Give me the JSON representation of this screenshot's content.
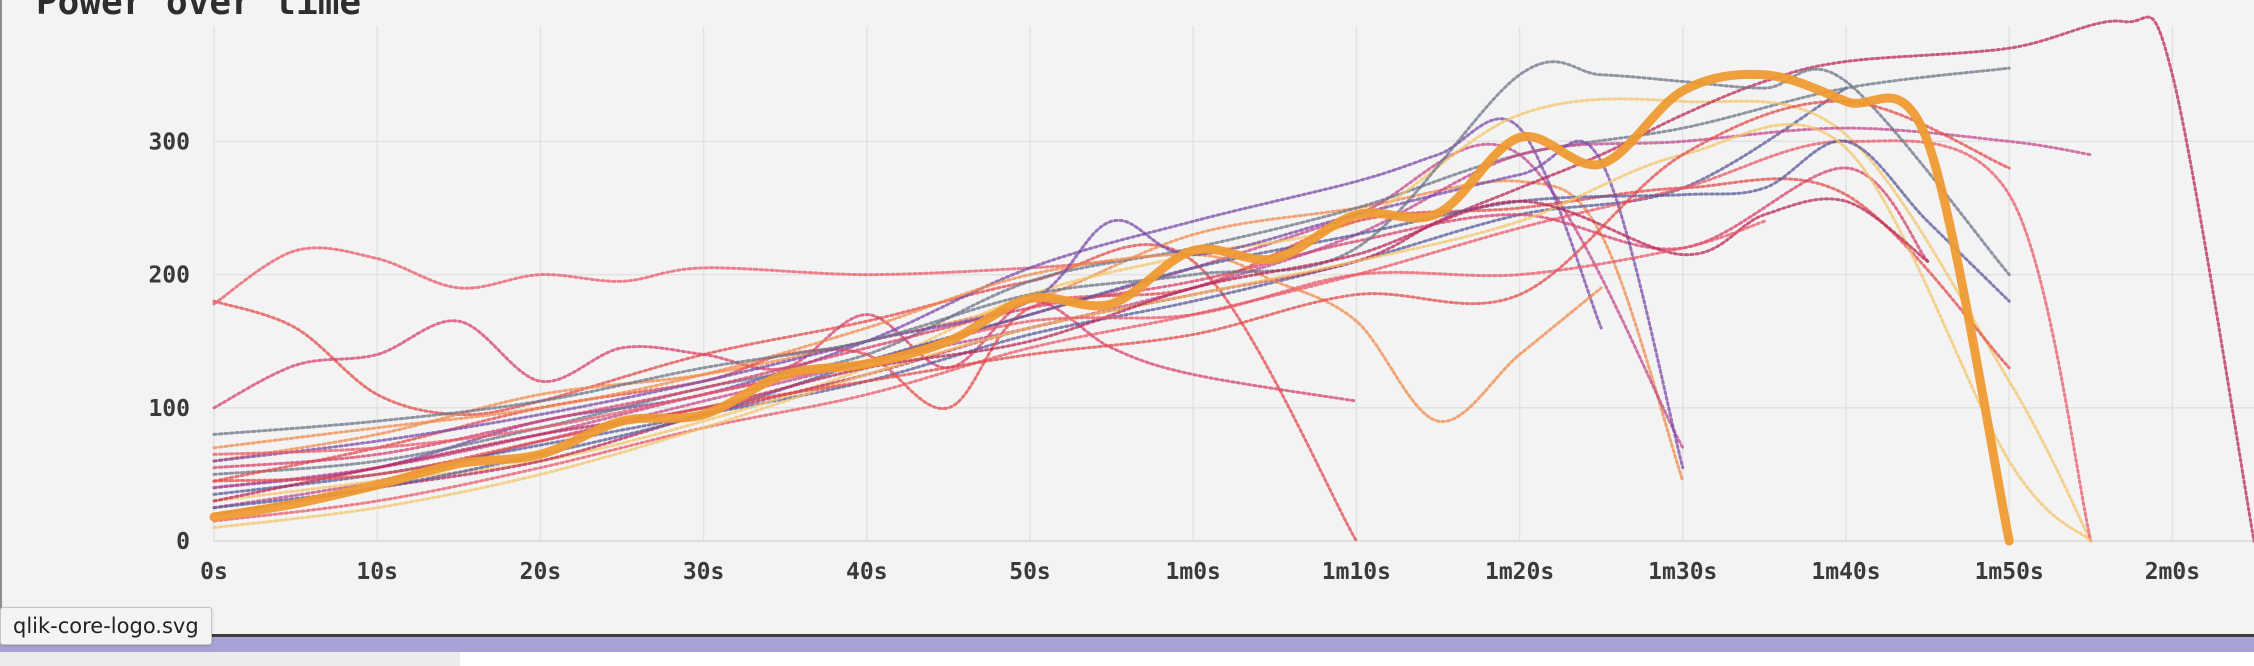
{
  "tooltip": {
    "text": "qlik-core-logo.svg"
  },
  "colors": {
    "background": "#f3f3f3",
    "grid": "#e2e2e2",
    "highlight": "#ee9a32",
    "trace_palette": [
      "#e24b4b",
      "#e85a6a",
      "#d7426b",
      "#f08a4b",
      "#c14a8c",
      "#7a4aa8",
      "#5a5a9a",
      "#6e7488",
      "#f3c56a",
      "#b82a5a"
    ]
  },
  "chart_data": {
    "type": "line",
    "title": "Power over time",
    "xlabel": "",
    "ylabel": "",
    "xlim": [
      0,
      125
    ],
    "ylim": [
      0,
      380
    ],
    "grid": true,
    "x_ticks": [
      {
        "v": 0,
        "label": "0s"
      },
      {
        "v": 10,
        "label": "10s"
      },
      {
        "v": 20,
        "label": "20s"
      },
      {
        "v": 30,
        "label": "30s"
      },
      {
        "v": 40,
        "label": "40s"
      },
      {
        "v": 50,
        "label": "50s"
      },
      {
        "v": 60,
        "label": "1m0s"
      },
      {
        "v": 70,
        "label": "1m10s"
      },
      {
        "v": 80,
        "label": "1m20s"
      },
      {
        "v": 90,
        "label": "1m30s"
      },
      {
        "v": 100,
        "label": "1m40s"
      },
      {
        "v": 110,
        "label": "1m50s"
      },
      {
        "v": 120,
        "label": "2m0s"
      }
    ],
    "y_ticks": [
      {
        "v": 0,
        "label": "0"
      },
      {
        "v": 100,
        "label": "100"
      },
      {
        "v": 200,
        "label": "200"
      },
      {
        "v": 300,
        "label": "300"
      }
    ],
    "highlight_series": {
      "x": [
        0,
        5,
        10,
        15,
        20,
        25,
        30,
        35,
        40,
        45,
        50,
        55,
        60,
        65,
        70,
        75,
        80,
        85,
        90,
        95,
        100,
        105,
        110
      ],
      "y": [
        18,
        28,
        42,
        58,
        65,
        90,
        95,
        125,
        133,
        150,
        182,
        178,
        218,
        212,
        245,
        246,
        303,
        283,
        338,
        350,
        330,
        300,
        0
      ]
    },
    "series": [
      {
        "x": [
          0,
          5,
          10,
          15,
          20,
          30,
          40,
          50,
          60,
          70
        ],
        "y": [
          180,
          160,
          110,
          95,
          105,
          140,
          165,
          195,
          210,
          0
        ]
      },
      {
        "x": [
          0,
          5,
          10,
          15,
          20,
          25,
          30,
          40,
          50,
          55
        ],
        "y": [
          178,
          218,
          212,
          190,
          200,
          195,
          205,
          200,
          205,
          210
        ]
      },
      {
        "x": [
          0,
          5,
          10,
          15,
          20,
          25,
          30,
          35,
          40,
          45,
          50,
          55,
          60,
          70
        ],
        "y": [
          100,
          132,
          140,
          165,
          120,
          145,
          140,
          130,
          170,
          130,
          180,
          145,
          125,
          105
        ]
      },
      {
        "x": [
          0,
          10,
          20,
          30,
          40,
          50,
          60,
          70,
          80,
          85,
          90
        ],
        "y": [
          60,
          80,
          110,
          125,
          150,
          180,
          230,
          250,
          270,
          230,
          45
        ]
      },
      {
        "x": [
          0,
          10,
          20,
          30,
          40,
          50,
          60,
          70,
          80,
          90
        ],
        "y": [
          25,
          45,
          75,
          105,
          135,
          170,
          205,
          245,
          290,
          70
        ]
      },
      {
        "x": [
          0,
          10,
          20,
          30,
          40,
          50,
          60,
          70,
          75,
          80,
          85
        ],
        "y": [
          40,
          55,
          90,
          110,
          150,
          205,
          240,
          270,
          290,
          310,
          160
        ]
      },
      {
        "x": [
          0,
          10,
          20,
          30,
          40,
          50,
          60,
          70,
          80,
          90,
          100
        ],
        "y": [
          35,
          50,
          72,
          95,
          120,
          155,
          180,
          210,
          245,
          265,
          340
        ]
      },
      {
        "x": [
          0,
          10,
          20,
          30,
          40,
          50,
          60,
          70,
          80,
          90,
          100,
          110
        ],
        "y": [
          50,
          60,
          85,
          115,
          140,
          195,
          220,
          250,
          290,
          310,
          340,
          355
        ]
      },
      {
        "x": [
          0,
          10,
          20,
          30,
          40,
          50,
          60,
          70,
          80,
          90,
          100,
          110,
          115
        ],
        "y": [
          30,
          45,
          60,
          90,
          130,
          185,
          215,
          240,
          320,
          330,
          305,
          120,
          0
        ]
      },
      {
        "x": [
          0,
          10,
          20,
          30,
          40,
          50,
          60,
          70,
          75,
          80,
          85,
          90,
          95,
          100,
          110,
          117,
          120,
          125
        ],
        "y": [
          20,
          40,
          60,
          95,
          125,
          160,
          185,
          210,
          240,
          265,
          290,
          320,
          345,
          360,
          370,
          390,
          350,
          0
        ]
      },
      {
        "x": [
          0,
          10,
          20,
          30,
          35,
          40,
          45,
          50,
          60,
          70,
          80,
          90,
          100,
          110
        ],
        "y": [
          45,
          70,
          100,
          120,
          140,
          140,
          100,
          175,
          190,
          240,
          250,
          265,
          260,
          130
        ]
      },
      {
        "x": [
          0,
          10,
          20,
          30,
          40,
          50,
          60,
          70,
          80,
          90,
          100,
          110,
          115
        ],
        "y": [
          15,
          30,
          55,
          85,
          110,
          145,
          170,
          200,
          235,
          265,
          300,
          260,
          0
        ]
      },
      {
        "x": [
          0,
          10,
          20,
          30,
          40,
          50,
          60,
          70,
          80,
          90,
          100,
          105
        ],
        "y": [
          55,
          65,
          90,
          115,
          145,
          175,
          195,
          225,
          245,
          220,
          280,
          210
        ]
      },
      {
        "x": [
          0,
          10,
          20,
          30,
          40,
          50,
          60,
          65,
          70,
          75,
          80,
          85
        ],
        "y": [
          70,
          85,
          100,
          125,
          160,
          200,
          215,
          195,
          165,
          90,
          140,
          190
        ]
      },
      {
        "x": [
          0,
          10,
          20,
          30,
          40,
          50,
          60,
          70,
          80,
          90,
          100,
          110,
          115
        ],
        "y": [
          40,
          55,
          80,
          110,
          135,
          160,
          190,
          230,
          290,
          300,
          310,
          300,
          290
        ]
      },
      {
        "x": [
          0,
          10,
          20,
          30,
          40,
          50,
          55,
          60,
          70,
          80,
          85,
          90
        ],
        "y": [
          60,
          75,
          95,
          120,
          150,
          180,
          240,
          215,
          245,
          275,
          285,
          55
        ]
      },
      {
        "x": [
          0,
          10,
          20,
          30,
          40,
          50,
          60,
          70,
          80,
          90,
          95,
          100,
          105,
          110
        ],
        "y": [
          25,
          40,
          65,
          95,
          135,
          170,
          205,
          230,
          255,
          260,
          265,
          300,
          240,
          180
        ]
      },
      {
        "x": [
          0,
          10,
          20,
          30,
          40,
          50,
          60,
          70,
          80,
          85,
          90,
          95,
          100,
          110
        ],
        "y": [
          80,
          90,
          105,
          130,
          150,
          185,
          200,
          220,
          350,
          350,
          345,
          340,
          345,
          200
        ]
      },
      {
        "x": [
          0,
          10,
          20,
          30,
          40,
          50,
          60,
          70,
          80,
          90,
          100,
          110,
          115
        ],
        "y": [
          10,
          25,
          50,
          85,
          125,
          160,
          185,
          210,
          240,
          290,
          295,
          60,
          0
        ]
      },
      {
        "x": [
          0,
          10,
          20,
          30,
          40,
          50,
          60,
          70,
          80,
          90,
          95,
          100,
          105
        ],
        "y": [
          30,
          55,
          80,
          100,
          130,
          150,
          190,
          215,
          255,
          215,
          245,
          255,
          210
        ]
      },
      {
        "x": [
          0,
          10,
          20,
          30,
          40,
          50,
          60,
          70,
          80,
          90,
          100,
          110
        ],
        "y": [
          45,
          50,
          75,
          100,
          120,
          140,
          155,
          185,
          185,
          290,
          330,
          280
        ]
      },
      {
        "x": [
          0,
          10,
          20,
          30,
          40,
          50,
          60,
          70,
          80,
          90,
          95
        ],
        "y": [
          65,
          70,
          85,
          110,
          135,
          165,
          170,
          200,
          200,
          220,
          240
        ]
      }
    ]
  }
}
